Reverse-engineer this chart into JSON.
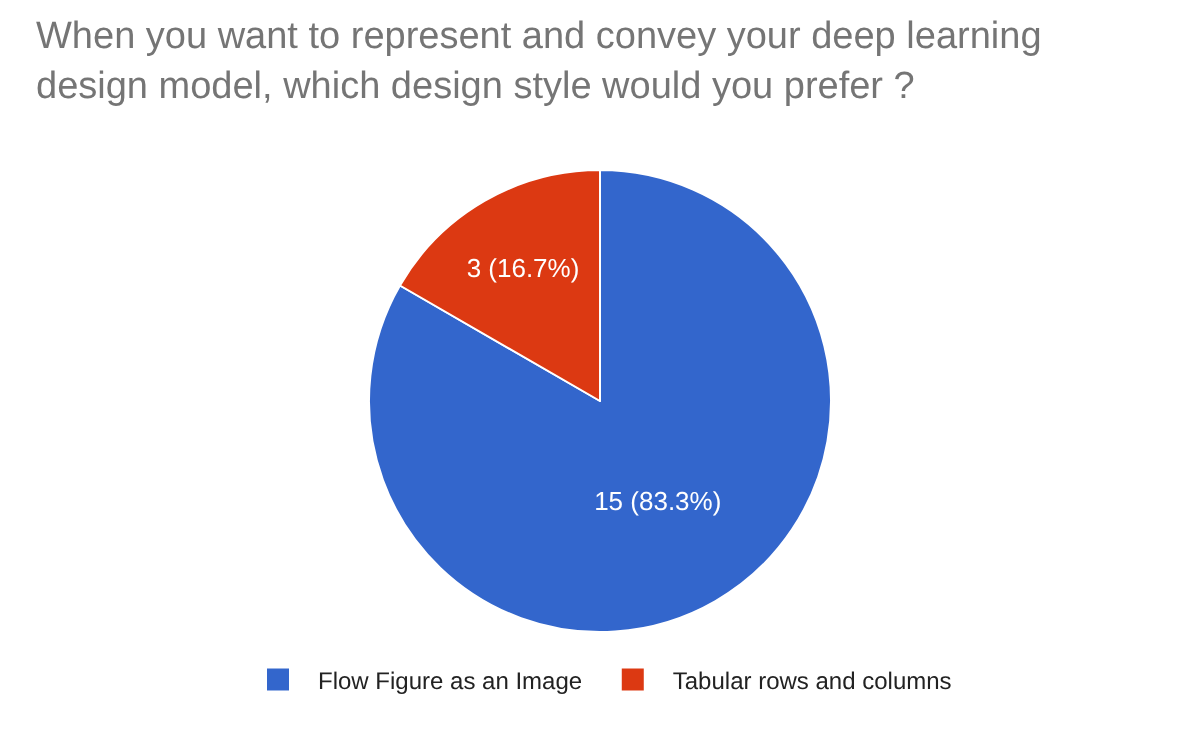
{
  "chart_data": {
    "type": "pie",
    "title": "When you want to represent and convey your deep learning design model, which design style would you prefer ?",
    "categories": [
      "Flow Figure as an Image",
      "Tabular rows and columns"
    ],
    "values": [
      15,
      3
    ],
    "colors": [
      "#3366cc",
      "#dc3912"
    ],
    "value_labels": [
      "15 (83.3%)",
      "3 (16.7%)"
    ],
    "legend": "bottom"
  }
}
